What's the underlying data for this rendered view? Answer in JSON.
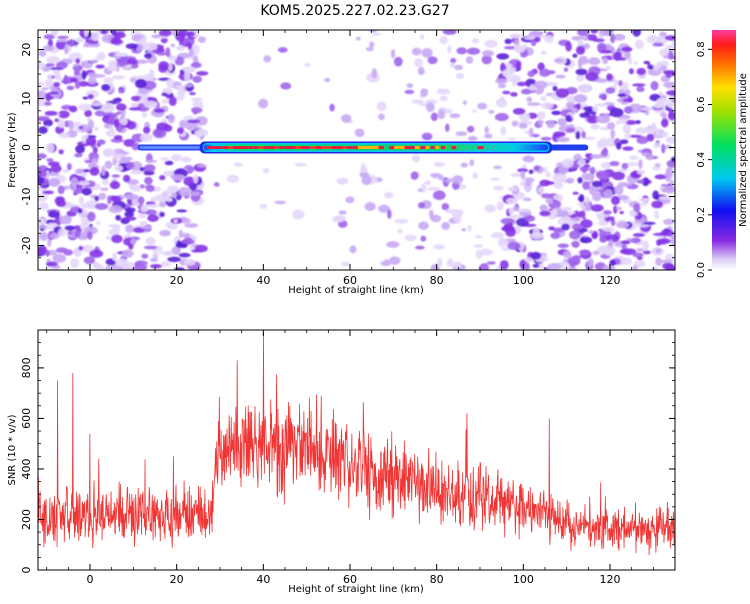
{
  "title": "KOM5.2025.227.02.23.G27",
  "colors": {
    "snr_line": "#f03535",
    "signal_core": "#e0204a",
    "axis": "#000000"
  },
  "chart_data": [
    {
      "type": "heatmap",
      "title": "KOM5.2025.227.02.23.G27",
      "xlabel": "Height of straight line (km)",
      "ylabel": "Frequency (Hz)",
      "xlim": [
        -12,
        135
      ],
      "ylim": [
        -25,
        24
      ],
      "x_ticks": [
        0,
        20,
        40,
        60,
        80,
        100,
        120
      ],
      "x_tick_labels": [
        "0",
        "20",
        "40",
        "60",
        "80",
        "100",
        "120"
      ],
      "y_ticks": [
        -20,
        -10,
        0,
        10,
        20
      ],
      "y_tick_labels": [
        "-20",
        "-10",
        "0",
        "10",
        "20"
      ],
      "colorbar": {
        "label": "Normalized spectral amplitude",
        "range": [
          0,
          0.87
        ],
        "ticks": [
          0.0,
          0.2,
          0.4,
          0.6,
          0.8
        ],
        "tick_labels": [
          "0.0",
          "0.2",
          "0.4",
          "0.6",
          "0.8"
        ]
      },
      "signal": {
        "frequency_hz": 0,
        "height_start_km": 11,
        "height_end_km": 115,
        "strong_start_km": 26,
        "strong_end_km": 106,
        "peak_amplitude": 0.85
      },
      "noise_regions_km": [
        [
          -12,
          26
        ],
        [
          90,
          135
        ]
      ]
    },
    {
      "type": "line",
      "xlabel": "Height of straight line (km)",
      "ylabel": "SNR (10 * v/v)",
      "xlim": [
        -12,
        135
      ],
      "ylim": [
        0,
        950
      ],
      "x_ticks": [
        0,
        20,
        40,
        60,
        80,
        100,
        120
      ],
      "x_tick_labels": [
        "0",
        "20",
        "40",
        "60",
        "80",
        "100",
        "120"
      ],
      "y_ticks": [
        0,
        200,
        400,
        600,
        800
      ],
      "y_tick_labels": [
        "0",
        "200",
        "400",
        "600",
        "800"
      ],
      "series": [
        {
          "name": "SNR",
          "trend_x": [
            -12,
            28,
            29,
            40,
            50,
            60,
            70,
            80,
            90,
            100,
            110,
            120,
            135
          ],
          "trend_y": [
            220,
            220,
            460,
            490,
            470,
            420,
            360,
            320,
            280,
            240,
            200,
            165,
            150
          ],
          "spread": [
            100,
            100,
            120,
            150,
            150,
            130,
            120,
            110,
            100,
            90,
            80,
            70,
            65
          ],
          "peaks": [
            {
              "x": 40,
              "y": 940
            },
            {
              "x": 34,
              "y": 830
            },
            {
              "x": 0,
              "y": 540
            },
            {
              "x": 2,
              "y": 440
            },
            {
              "x": 87,
              "y": 620
            },
            {
              "x": 106,
              "y": 600
            },
            {
              "x": 19.3,
              "y": 450
            },
            {
              "x": -7.5,
              "y": 750
            },
            {
              "x": -4,
              "y": 780
            }
          ]
        }
      ]
    }
  ]
}
